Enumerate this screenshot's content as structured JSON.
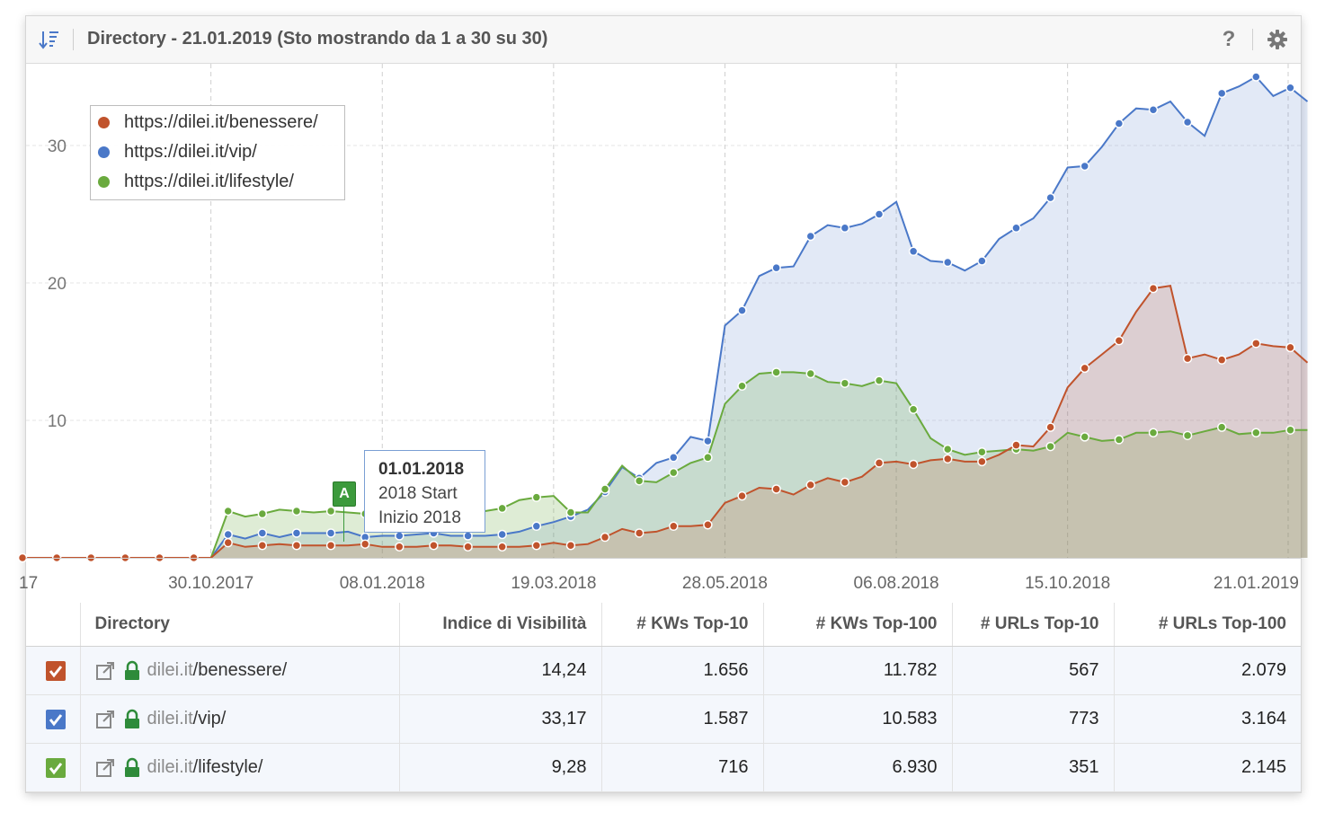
{
  "header": {
    "title": "Directory - 21.01.2019 (Sto mostrando da 1 a 30 su 30)",
    "help_label": "?"
  },
  "colors": {
    "benessere": "#c0532c",
    "vip": "#4a78c8",
    "lifestyle": "#6aaa3e"
  },
  "chart_data": {
    "type": "area",
    "yticks": [
      "10",
      "20",
      "30"
    ],
    "ylim": [
      0,
      35.5
    ],
    "xtick_labels": [
      "17",
      "30.10.2017",
      "08.01.2018",
      "19.03.2018",
      "28.05.2018",
      "06.08.2018",
      "15.10.2018",
      "21.01.2019"
    ],
    "x_dates": [
      "14.08.2017",
      "21.08.2017",
      "28.08.2017",
      "04.09.2017",
      "11.09.2017",
      "18.09.2017",
      "25.09.2017",
      "02.10.2017",
      "09.10.2017",
      "16.10.2017",
      "23.10.2017",
      "30.10.2017",
      "06.11.2017",
      "13.11.2017",
      "20.11.2017",
      "27.11.2017",
      "04.12.2017",
      "11.12.2017",
      "18.12.2017",
      "25.12.2017",
      "01.01.2018",
      "08.01.2018",
      "15.01.2018",
      "22.01.2018",
      "29.01.2018",
      "05.02.2018",
      "12.02.2018",
      "19.02.2018",
      "26.02.2018",
      "05.03.2018",
      "12.03.2018",
      "19.03.2018",
      "26.03.2018",
      "02.04.2018",
      "09.04.2018",
      "16.04.2018",
      "23.04.2018",
      "30.04.2018",
      "07.05.2018",
      "14.05.2018",
      "21.05.2018",
      "28.05.2018",
      "04.06.2018",
      "11.06.2018",
      "18.06.2018",
      "25.06.2018",
      "02.07.2018",
      "09.07.2018",
      "16.07.2018",
      "23.07.2018",
      "30.07.2018",
      "06.08.2018",
      "13.08.2018",
      "20.08.2018",
      "27.08.2018",
      "03.09.2018",
      "10.09.2018",
      "17.09.2018",
      "24.09.2018",
      "01.10.2018",
      "08.10.2018",
      "15.10.2018",
      "22.10.2018",
      "29.10.2018",
      "05.11.2018",
      "12.11.2018",
      "19.11.2018",
      "26.11.2018",
      "03.12.2018",
      "10.12.2018",
      "17.12.2018",
      "24.12.2018",
      "31.12.2018",
      "07.01.2019",
      "14.01.2019",
      "21.01.2019"
    ],
    "series": [
      {
        "name": "https://dilei.it/benessere/",
        "color": "#c0532c",
        "values": [
          0,
          0,
          0,
          0,
          0,
          0,
          0,
          0,
          0,
          0,
          0,
          0,
          1.1,
          0.8,
          0.9,
          1.0,
          0.9,
          0.9,
          0.9,
          0.9,
          1.0,
          0.8,
          0.8,
          0.8,
          0.9,
          0.9,
          0.8,
          0.8,
          0.8,
          0.8,
          0.9,
          1.1,
          0.9,
          1.0,
          1.5,
          2.1,
          1.8,
          1.9,
          2.3,
          2.3,
          2.4,
          4.0,
          4.5,
          5.1,
          5.0,
          4.6,
          5.3,
          5.8,
          5.5,
          5.9,
          6.9,
          7.0,
          6.8,
          7.1,
          7.2,
          7.0,
          7.0,
          7.5,
          8.2,
          8.1,
          9.5,
          12.4,
          13.8,
          14.8,
          15.8,
          17.9,
          19.6,
          19.8,
          14.5,
          14.8,
          14.4,
          14.8,
          15.6,
          15.4,
          15.3,
          14.2
        ]
      },
      {
        "name": "https://dilei.it/vip/",
        "color": "#4a78c8",
        "values": [
          0,
          0,
          0,
          0,
          0,
          0,
          0,
          0,
          0,
          0,
          0,
          0,
          1.7,
          1.4,
          1.8,
          1.5,
          1.8,
          1.8,
          1.8,
          1.9,
          1.5,
          1.6,
          1.6,
          1.7,
          1.8,
          1.6,
          1.6,
          1.6,
          1.7,
          1.9,
          2.3,
          2.6,
          3.0,
          3.5,
          4.8,
          6.6,
          5.8,
          6.9,
          7.3,
          8.8,
          8.5,
          16.9,
          18.0,
          20.5,
          21.1,
          21.2,
          23.4,
          24.2,
          24.0,
          24.3,
          25.0,
          25.9,
          22.3,
          21.6,
          21.5,
          20.9,
          21.6,
          23.2,
          24.0,
          24.7,
          26.2,
          28.4,
          28.5,
          29.9,
          31.6,
          32.7,
          32.6,
          33.2,
          31.7,
          30.7,
          33.8,
          34.3,
          35.0,
          33.6,
          34.2,
          33.2
        ]
      },
      {
        "name": "https://dilei.it/lifestyle/",
        "color": "#6aaa3e",
        "values": [
          0,
          0,
          0,
          0,
          0,
          0,
          0,
          0,
          0,
          0,
          0,
          0,
          3.4,
          3.0,
          3.2,
          3.5,
          3.4,
          3.3,
          3.4,
          3.3,
          3.2,
          3.0,
          3.1,
          3.5,
          3.4,
          3.3,
          3.5,
          3.4,
          3.6,
          4.2,
          4.4,
          4.5,
          3.3,
          3.3,
          5.0,
          6.7,
          5.6,
          5.5,
          6.2,
          6.9,
          7.3,
          11.2,
          12.5,
          13.4,
          13.5,
          13.5,
          13.4,
          12.8,
          12.7,
          12.5,
          12.9,
          12.7,
          10.8,
          8.7,
          7.9,
          7.5,
          7.7,
          7.8,
          7.9,
          7.8,
          8.1,
          9.1,
          8.8,
          8.5,
          8.6,
          9.1,
          9.1,
          9.2,
          8.9,
          9.2,
          9.5,
          9.0,
          9.1,
          9.1,
          9.3,
          9.3
        ]
      }
    ],
    "annotation": {
      "label": "A",
      "date": "01.01.2018",
      "line1": "2018 Start",
      "line2": "Inizio 2018"
    },
    "grid": true,
    "legend_position": "top-left"
  },
  "table": {
    "columns": [
      "Directory",
      "Indice di Visibilità",
      "# KWs Top-10",
      "# KWs Top-100",
      "# URLs Top-10",
      "# URLs Top-100"
    ],
    "rows": [
      {
        "domain": "dilei.it",
        "path": "/benessere/",
        "color": "#c0532c",
        "vis": "14,24",
        "kw10": "1.656",
        "kw100": "11.782",
        "url10": "567",
        "url100": "2.079"
      },
      {
        "domain": "dilei.it",
        "path": "/vip/",
        "color": "#4a78c8",
        "vis": "33,17",
        "kw10": "1.587",
        "kw100": "10.583",
        "url10": "773",
        "url100": "3.164"
      },
      {
        "domain": "dilei.it",
        "path": "/lifestyle/",
        "color": "#6aaa3e",
        "vis": "9,28",
        "kw10": "716",
        "kw100": "6.930",
        "url10": "351",
        "url100": "2.145"
      }
    ]
  }
}
